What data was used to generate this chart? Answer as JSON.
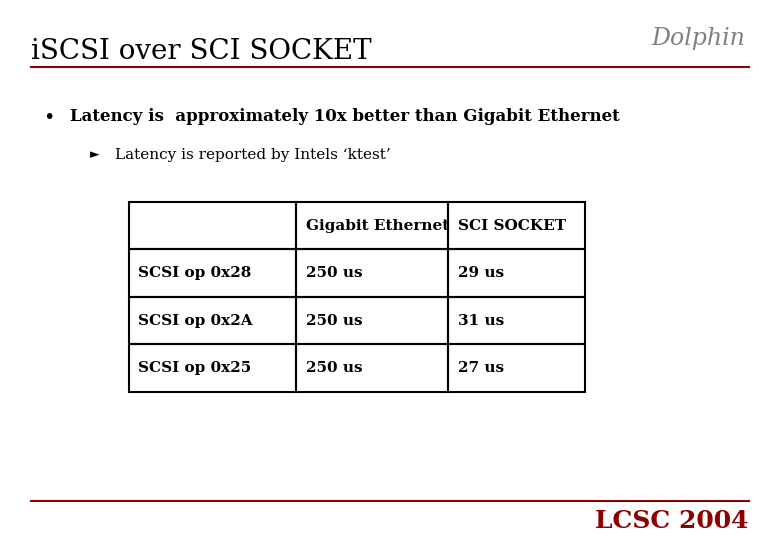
{
  "title": "iSCSI over SCI SOCKET",
  "background_color": "#ffffff",
  "title_color": "#000000",
  "title_fontsize": 20,
  "bullet_text": "Latency is  approximately 10x better than Gigabit Ethernet",
  "sub_bullet_text": "Latency is reported by Intels ‘ktest’",
  "table_headers": [
    "",
    "Gigabit Ethernet",
    "SCI SOCKET"
  ],
  "table_rows": [
    [
      "SCSI op 0x28",
      "250 us",
      "29 us"
    ],
    [
      "SCSI op 0x2A",
      "250 us",
      "31 us"
    ],
    [
      "SCSI op 0x25",
      "250 us",
      "27 us"
    ]
  ],
  "footer_text": "LCSC 2004",
  "footer_color": "#8B0000",
  "top_line_color": "#8B0000",
  "bottom_line_color": "#8B0000",
  "dolphin_text": "Dolphin",
  "dolphin_color": "#808080"
}
